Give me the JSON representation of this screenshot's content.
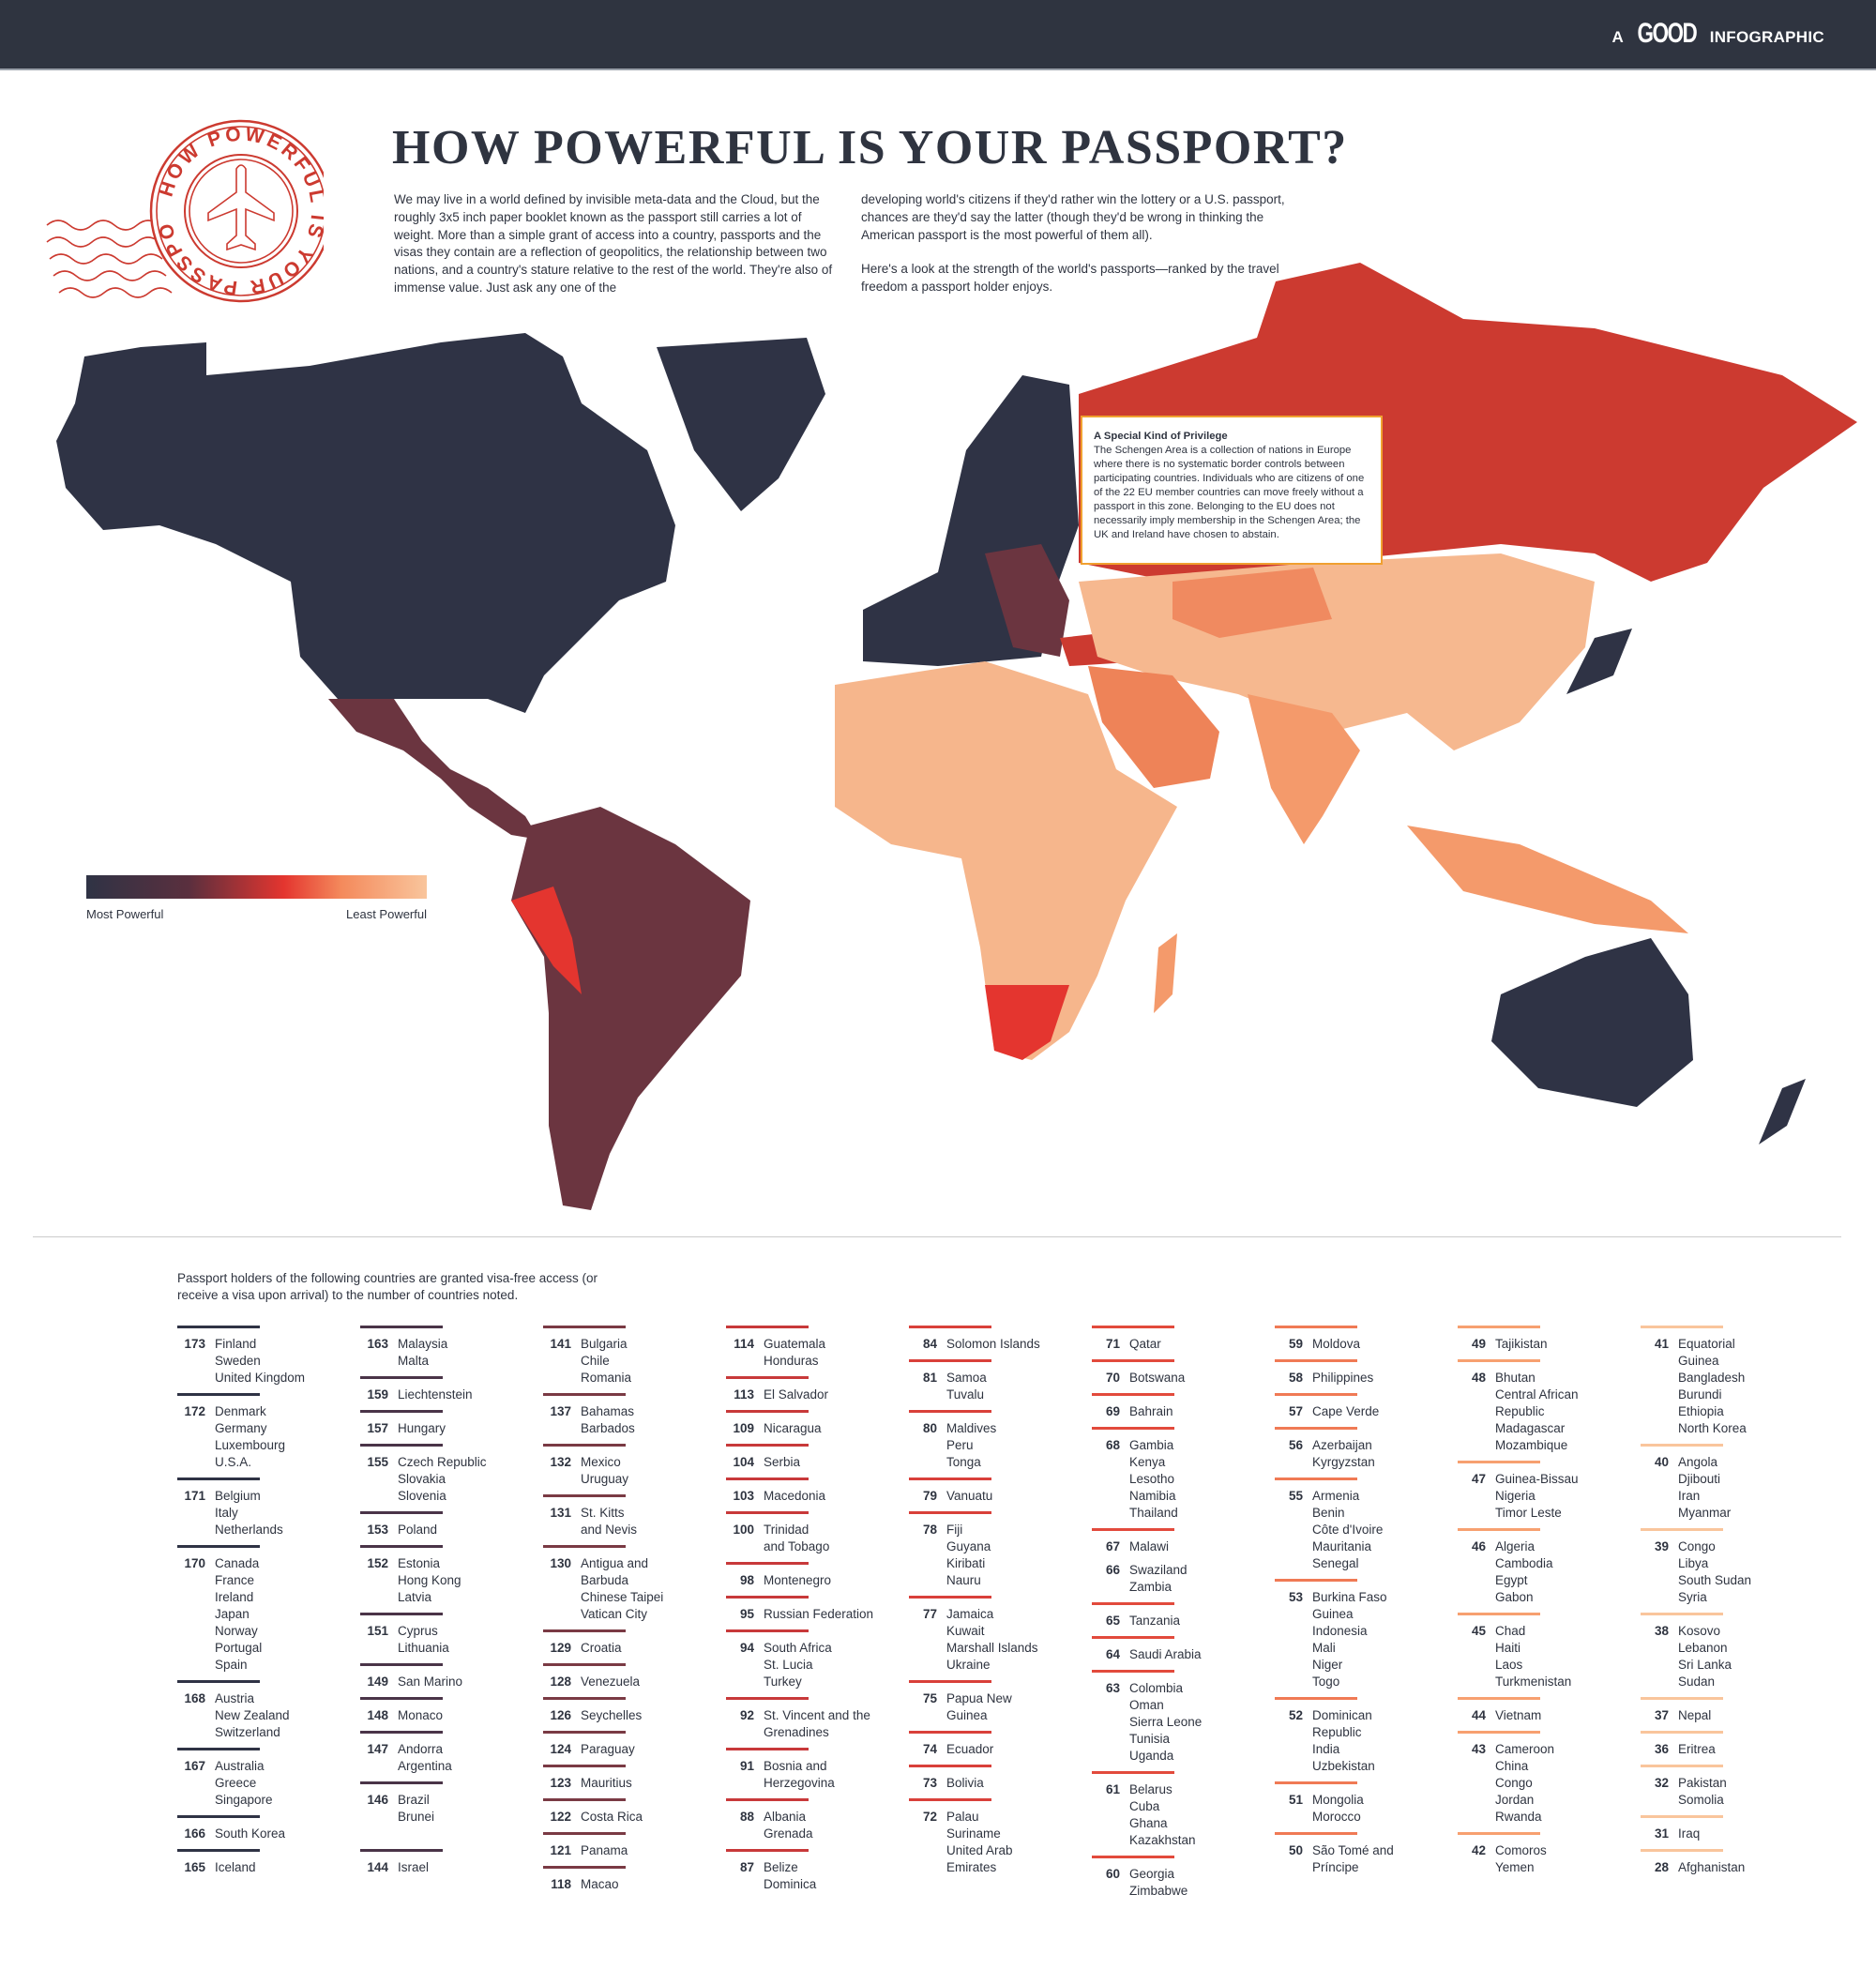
{
  "header": {
    "brand_prefix": "A",
    "brand_name": "GOOD",
    "brand_suffix": "INFOGRAPHIC"
  },
  "stamp": {
    "text": "HOW POWERFUL IS YOUR PASSPORT?",
    "icon": "airplane-icon",
    "color": "#cc3a30"
  },
  "title": "HOW POWERFUL IS YOUR PASSPORT?",
  "intro": {
    "col1": "We may live in a world defined by invisible meta-data and the Cloud, but the roughly 3x5 inch paper booklet known as the passport still carries a lot of weight. More than a simple grant of access into a country, passports and the visas they contain are a reflection of geopolitics, the relationship between two nations, and a country's stature relative to the rest of the world. They're also of immense value. Just ask any one of the",
    "col2a": "developing world's citizens if they'd rather win the lottery or a U.S. passport, chances are they'd say the latter (though they'd be wrong in thinking the American passport is the most powerful of them all).",
    "col2b": "Here's a look at the strength of the world's passports—ranked by the travel freedom a passport holder enjoys."
  },
  "legend": {
    "most": "Most Powerful",
    "least": "Least Powerful",
    "colors": [
      "#2f3345",
      "#5a2f3e",
      "#e4352f",
      "#f48a5c",
      "#f9c59c"
    ]
  },
  "schengen": {
    "title": "A Special Kind of Privilege",
    "body": "The Schengen Area is a collection of nations in Europe where there is no systematic border controls between participating countries. Individuals who are citizens of one of the 22 EU member countries can move freely without a passport in this zone. Belonging to the EU does not necessarily imply membership in the Schengen Area; the UK and Ireland have chosen to abstain."
  },
  "list_intro": "Passport holders of the following countries are granted visa-free access (or receive a visa upon arrival) to the number of countries noted.",
  "columns": [
    {
      "color": "#2f3345",
      "groups": [
        {
          "n": "173",
          "c": [
            "Finland",
            "Sweden",
            "United Kingdom"
          ]
        },
        {
          "n": "172",
          "c": [
            "Denmark",
            "Germany",
            "Luxembourg",
            "U.S.A."
          ]
        },
        {
          "n": "171",
          "c": [
            "Belgium",
            "Italy",
            "Netherlands"
          ]
        },
        {
          "n": "170",
          "c": [
            "Canada",
            "France",
            "Ireland",
            "Japan",
            "Norway",
            "Portugal",
            "Spain"
          ]
        },
        {
          "n": "168",
          "c": [
            "Austria",
            "New Zealand",
            "Switzerland"
          ]
        },
        {
          "n": "167",
          "c": [
            "Australia",
            "Greece",
            "Singapore"
          ]
        },
        {
          "n": "166",
          "c": [
            "South Korea"
          ]
        },
        {
          "n": "165",
          "c": [
            "Iceland"
          ]
        }
      ]
    },
    {
      "color": "#4a3448",
      "groups": [
        {
          "n": "163",
          "c": [
            "Malaysia",
            "Malta"
          ]
        },
        {
          "n": "159",
          "c": [
            "Liechtenstein"
          ]
        },
        {
          "n": "157",
          "c": [
            "Hungary"
          ]
        },
        {
          "n": "155",
          "c": [
            "Czech Republic",
            "Slovakia",
            "Slovenia"
          ]
        },
        {
          "n": "153",
          "c": [
            "Poland"
          ]
        },
        {
          "n": "152",
          "c": [
            "Estonia",
            "Hong Kong",
            "Latvia"
          ]
        },
        {
          "n": "151",
          "c": [
            "Cyprus",
            "Lithuania"
          ]
        },
        {
          "n": "149",
          "c": [
            "San Marino"
          ]
        },
        {
          "n": "148",
          "c": [
            "Monaco"
          ]
        },
        {
          "n": "147",
          "c": [
            "Andorra",
            "Argentina"
          ]
        },
        {
          "n": "146",
          "c": [
            "Brazil",
            "Brunei"
          ]
        },
        {
          "n": "144",
          "c": [
            "Israel"
          ],
          "gap": true
        }
      ]
    },
    {
      "color": "#7a3a44",
      "groups": [
        {
          "n": "141",
          "c": [
            "Bulgaria",
            "Chile",
            "Romania"
          ]
        },
        {
          "n": "137",
          "c": [
            "Bahamas",
            "Barbados"
          ]
        },
        {
          "n": "132",
          "c": [
            "Mexico",
            "Uruguay"
          ]
        },
        {
          "n": "131",
          "c": [
            "St. Kitts",
            "and Nevis"
          ]
        },
        {
          "n": "130",
          "c": [
            "Antigua and",
            "Barbuda",
            "Chinese Taipei",
            "Vatican City"
          ]
        },
        {
          "n": "129",
          "c": [
            "Croatia"
          ]
        },
        {
          "n": "128",
          "c": [
            "Venezuela"
          ]
        },
        {
          "n": "126",
          "c": [
            "Seychelles"
          ]
        },
        {
          "n": "124",
          "c": [
            "Paraguay"
          ]
        },
        {
          "n": "123",
          "c": [
            "Mauritius"
          ]
        },
        {
          "n": "122",
          "c": [
            "Costa Rica"
          ]
        },
        {
          "n": "121",
          "c": [
            "Panama"
          ]
        },
        {
          "n": "118",
          "c": [
            "Macao"
          ]
        }
      ]
    },
    {
      "color": "#c8393a",
      "groups": [
        {
          "n": "114",
          "c": [
            "Guatemala",
            "Honduras"
          ]
        },
        {
          "n": "113",
          "c": [
            "El Salvador"
          ]
        },
        {
          "n": "109",
          "c": [
            "Nicaragua"
          ]
        },
        {
          "n": "104",
          "c": [
            "Serbia"
          ]
        },
        {
          "n": "103",
          "c": [
            "Macedonia"
          ]
        },
        {
          "n": "100",
          "c": [
            "Trinidad",
            "and Tobago"
          ]
        },
        {
          "n": "98",
          "c": [
            "Montenegro"
          ]
        },
        {
          "n": "95",
          "c": [
            "Russian Federation"
          ]
        },
        {
          "n": "94",
          "c": [
            "South Africa",
            "St. Lucia",
            "Turkey"
          ]
        },
        {
          "n": "92",
          "c": [
            "St. Vincent and the",
            "Grenadines"
          ]
        },
        {
          "n": "91",
          "c": [
            "Bosnia and",
            "Herzegovina"
          ]
        },
        {
          "n": "88",
          "c": [
            "Albania",
            "Grenada"
          ]
        },
        {
          "n": "87",
          "c": [
            "Belize",
            "Dominica"
          ]
        }
      ]
    },
    {
      "color": "#d9403a",
      "groups": [
        {
          "n": "84",
          "c": [
            "Solomon Islands"
          ]
        },
        {
          "n": "81",
          "c": [
            "Samoa",
            "Tuvalu"
          ]
        },
        {
          "n": "80",
          "c": [
            "Maldives",
            "Peru",
            "Tonga"
          ]
        },
        {
          "n": "79",
          "c": [
            "Vanuatu"
          ]
        },
        {
          "n": "78",
          "c": [
            "Fiji",
            "Guyana",
            "Kiribati",
            "Nauru"
          ]
        },
        {
          "n": "77",
          "c": [
            "Jamaica",
            "Kuwait",
            "Marshall Islands",
            "Ukraine"
          ]
        },
        {
          "n": "75",
          "c": [
            "Papua New",
            "Guinea"
          ]
        },
        {
          "n": "74",
          "c": [
            "Ecuador"
          ]
        },
        {
          "n": "73",
          "c": [
            "Bolivia"
          ]
        },
        {
          "n": "72",
          "c": [
            "Palau",
            "Suriname",
            "United Arab",
            "Emirates"
          ]
        }
      ]
    },
    {
      "color": "#e24a3c",
      "groups": [
        {
          "n": "71",
          "c": [
            "Qatar"
          ]
        },
        {
          "n": "70",
          "c": [
            "Botswana"
          ]
        },
        {
          "n": "69",
          "c": [
            "Bahrain"
          ]
        },
        {
          "n": "68",
          "c": [
            "Gambia",
            "Kenya",
            "Lesotho",
            "Namibia",
            "Thailand"
          ]
        },
        {
          "n": "67",
          "c": [
            "Malawi"
          ]
        },
        {
          "n": "66",
          "c": [
            "Swaziland",
            "Zambia"
          ],
          "noline": true
        },
        {
          "n": "65",
          "c": [
            "Tanzania"
          ]
        },
        {
          "n": "64",
          "c": [
            "Saudi Arabia"
          ]
        },
        {
          "n": "63",
          "c": [
            "Colombia",
            "Oman",
            "Sierra Leone",
            "Tunisia",
            "Uganda"
          ]
        },
        {
          "n": "61",
          "c": [
            "Belarus",
            "Cuba",
            "Ghana",
            "Kazakhstan"
          ]
        },
        {
          "n": "60",
          "c": [
            "Georgia",
            "Zimbabwe"
          ]
        }
      ]
    },
    {
      "color": "#f07a55",
      "groups": [
        {
          "n": "59",
          "c": [
            "Moldova"
          ]
        },
        {
          "n": "58",
          "c": [
            "Philippines"
          ]
        },
        {
          "n": "57",
          "c": [
            "Cape Verde"
          ]
        },
        {
          "n": "56",
          "c": [
            "Azerbaijan",
            "Kyrgyzstan"
          ]
        },
        {
          "n": "55",
          "c": [
            "Armenia",
            "Benin",
            "Côte d'Ivoire",
            "Mauritania",
            "Senegal"
          ]
        },
        {
          "n": "53",
          "c": [
            "Burkina Faso",
            "Guinea",
            "Indonesia",
            "Mali",
            "Niger",
            "Togo"
          ]
        },
        {
          "n": "52",
          "c": [
            "Dominican",
            "Republic",
            "India",
            "Uzbekistan"
          ]
        },
        {
          "n": "51",
          "c": [
            "Mongolia",
            "Morocco"
          ]
        },
        {
          "n": "50",
          "c": [
            "São Tomé and",
            "Príncipe"
          ]
        }
      ]
    },
    {
      "color": "#f7a070",
      "groups": [
        {
          "n": "49",
          "c": [
            "Tajikistan"
          ]
        },
        {
          "n": "48",
          "c": [
            "Bhutan",
            "Central African",
            "Republic",
            "Madagascar",
            "Mozambique"
          ]
        },
        {
          "n": "47",
          "c": [
            "Guinea-Bissau",
            "Nigeria",
            "Timor Leste"
          ]
        },
        {
          "n": "46",
          "c": [
            "Algeria",
            "Cambodia",
            "Egypt",
            "Gabon"
          ]
        },
        {
          "n": "45",
          "c": [
            "Chad",
            "Haiti",
            "Laos",
            "Turkmenistan"
          ]
        },
        {
          "n": "44",
          "c": [
            "Vietnam"
          ]
        },
        {
          "n": "43",
          "c": [
            "Cameroon",
            "China",
            "Congo",
            "Jordan",
            "Rwanda"
          ]
        },
        {
          "n": "42",
          "c": [
            "Comoros",
            "Yemen"
          ]
        }
      ]
    },
    {
      "color": "#f9c59c",
      "groups": [
        {
          "n": "41",
          "c": [
            "Equatorial",
            "Guinea",
            "Bangladesh",
            "Burundi",
            "Ethiopia",
            "North Korea"
          ]
        },
        {
          "n": "40",
          "c": [
            "Angola",
            "Djibouti",
            "Iran",
            "Myanmar"
          ]
        },
        {
          "n": "39",
          "c": [
            "Congo",
            "Libya",
            "South Sudan",
            "Syria"
          ]
        },
        {
          "n": "38",
          "c": [
            "Kosovo",
            "Lebanon",
            "Sri Lanka",
            "Sudan"
          ]
        },
        {
          "n": "37",
          "c": [
            "Nepal"
          ]
        },
        {
          "n": "36",
          "c": [
            "Eritrea"
          ]
        },
        {
          "n": "32",
          "c": [
            "Pakistan",
            "Somolia"
          ]
        },
        {
          "n": "31",
          "c": [
            "Iraq"
          ]
        },
        {
          "n": "28",
          "c": [
            "Afghanistan"
          ]
        }
      ]
    }
  ]
}
